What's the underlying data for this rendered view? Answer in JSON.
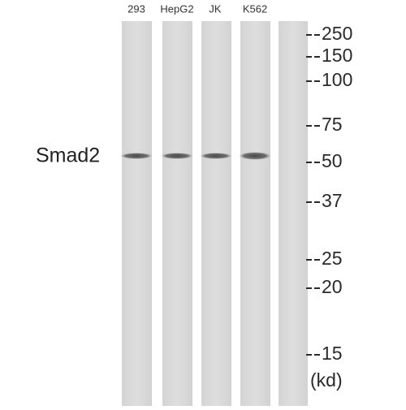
{
  "lanes": [
    {
      "label": "293"
    },
    {
      "label": "HepG2"
    },
    {
      "label": "JK"
    },
    {
      "label": "K562"
    }
  ],
  "protein_label": "Smad2",
  "markers": [
    {
      "label": "250"
    },
    {
      "label": "150"
    },
    {
      "label": "100"
    },
    {
      "label": "75"
    },
    {
      "label": "50"
    },
    {
      "label": "37"
    },
    {
      "label": "25"
    },
    {
      "label": "20"
    },
    {
      "label": "15"
    }
  ],
  "unit": "(kd)"
}
